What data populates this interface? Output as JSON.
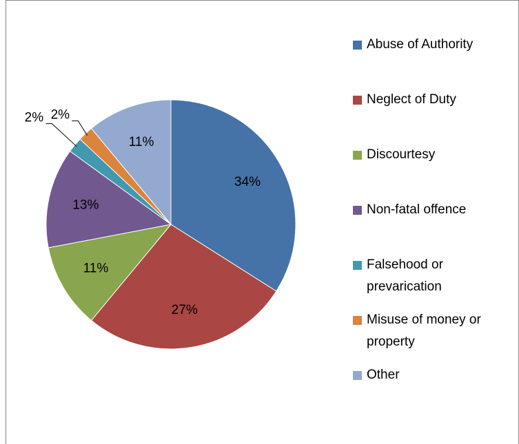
{
  "chart_data": {
    "type": "pie",
    "categories": [
      "Abuse of Authority",
      "Neglect of Duty",
      "Discourtesy",
      "Non-fatal offence",
      "Falsehood or prevarication",
      "Misuse of money or property",
      "Other"
    ],
    "values": [
      34,
      27,
      11,
      13,
      2,
      2,
      11
    ],
    "value_labels": [
      "34%",
      "27%",
      "11%",
      "13%",
      "2%",
      "2%",
      "11%"
    ],
    "colors": [
      "#4572a7",
      "#aa4643",
      "#89a54e",
      "#71588f",
      "#4198af",
      "#db843d",
      "#93a9cf"
    ],
    "legend": "right"
  }
}
